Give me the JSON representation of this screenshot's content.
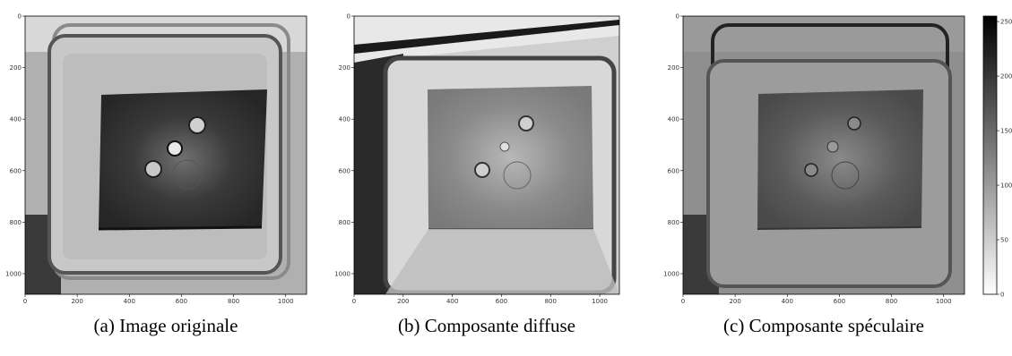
{
  "panels": [
    {
      "id": "a",
      "caption": "(a) Image originale",
      "x_ticks": [
        "0",
        "200",
        "400",
        "600",
        "800",
        "1000"
      ],
      "y_ticks": [
        "0",
        "200",
        "400",
        "600",
        "800",
        "1000"
      ]
    },
    {
      "id": "b",
      "caption": "(b) Composante diffuse",
      "x_ticks": [
        "0",
        "200",
        "400",
        "600",
        "800",
        "1000"
      ],
      "y_ticks": [
        "0",
        "200",
        "400",
        "600",
        "800",
        "1000"
      ]
    },
    {
      "id": "c",
      "caption": "(c) Composante spéculaire",
      "x_ticks": [
        "0",
        "200",
        "400",
        "600",
        "800",
        "1000"
      ],
      "y_ticks": [
        "0",
        "200",
        "400",
        "600",
        "800",
        "1000"
      ]
    }
  ],
  "colorbar": {
    "ticks": [
      "0",
      "50",
      "100",
      "150",
      "200",
      "250"
    ],
    "cmap_from": "#ffffff",
    "cmap_to": "#000000"
  }
}
